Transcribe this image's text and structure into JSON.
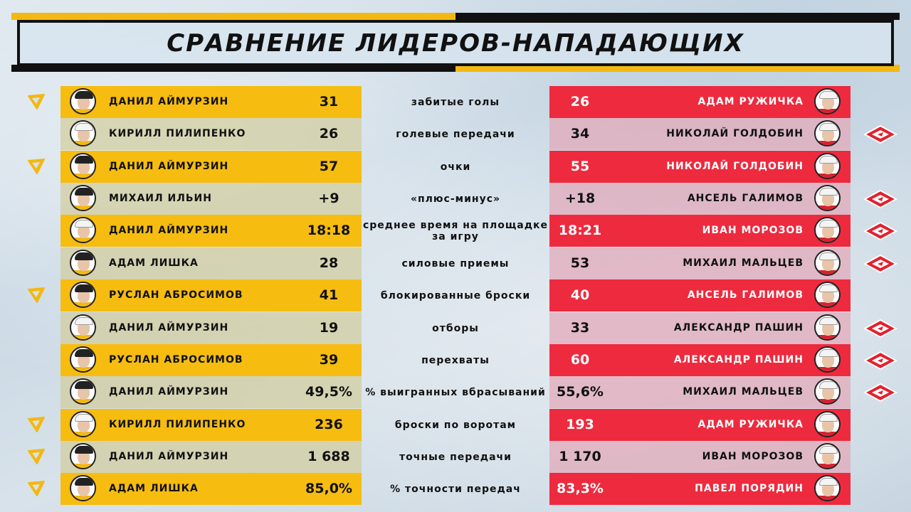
{
  "title": "Сравнение лидеров-нападающих",
  "colors": {
    "gold": "#f6bd10",
    "red": "#ee2a3e",
    "black": "#111111"
  },
  "rows": [
    {
      "left_name": "Данил Аймурзин",
      "left_value": "31",
      "metric": "забитые голы",
      "right_value": "26",
      "right_name": "Адам Ружичка",
      "leader": "left"
    },
    {
      "left_name": "Кирилл Пилипенко",
      "left_value": "26",
      "metric": "голевые передачи",
      "right_value": "34",
      "right_name": "Николай Голдобин",
      "leader": "right"
    },
    {
      "left_name": "Данил Аймурзин",
      "left_value": "57",
      "metric": "очки",
      "right_value": "55",
      "right_name": "Николай Голдобин",
      "leader": "left"
    },
    {
      "left_name": "Михаил Ильин",
      "left_value": "+9",
      "metric": "«плюс-минус»",
      "right_value": "+18",
      "right_name": "Ансель Галимов",
      "leader": "right"
    },
    {
      "left_name": "Данил Аймурзин",
      "left_value": "18:18",
      "metric": "среднее время на площадке за игру",
      "right_value": "18:21",
      "right_name": "Иван Морозов",
      "leader": "right"
    },
    {
      "left_name": "Адам Лишка",
      "left_value": "28",
      "metric": "силовые приемы",
      "right_value": "53",
      "right_name": "Михаил Мальцев",
      "leader": "right"
    },
    {
      "left_name": "Руслан Абросимов",
      "left_value": "41",
      "metric": "блокированные броски",
      "right_value": "40",
      "right_name": "Ансель Галимов",
      "leader": "left"
    },
    {
      "left_name": "Данил Аймурзин",
      "left_value": "19",
      "metric": "отборы",
      "right_value": "33",
      "right_name": "Александр Пашин",
      "leader": "right"
    },
    {
      "left_name": "Руслан Абросимов",
      "left_value": "39",
      "metric": "перехваты",
      "right_value": "60",
      "right_name": "Александр Пашин",
      "leader": "right"
    },
    {
      "left_name": "Данил Аймурзин",
      "left_value": "49,5%",
      "metric": "% выигранных вбрасываний",
      "right_value": "55,6%",
      "right_name": "Михаил Мальцев",
      "leader": "right"
    },
    {
      "left_name": "Кирилл Пилипенко",
      "left_value": "236",
      "metric": "броски по воротам",
      "right_value": "193",
      "right_name": "Адам Ружичка",
      "leader": "left"
    },
    {
      "left_name": "Данил Аймурзин",
      "left_value": "1 688",
      "metric": "точные передачи",
      "right_value": "1 170",
      "right_name": "Иван Морозов",
      "leader": "left"
    },
    {
      "left_name": "Адам Лишка",
      "left_value": "85,0%",
      "metric": "% точности передач",
      "right_value": "83,3%",
      "right_name": "Павел Порядин",
      "leader": "left"
    }
  ]
}
